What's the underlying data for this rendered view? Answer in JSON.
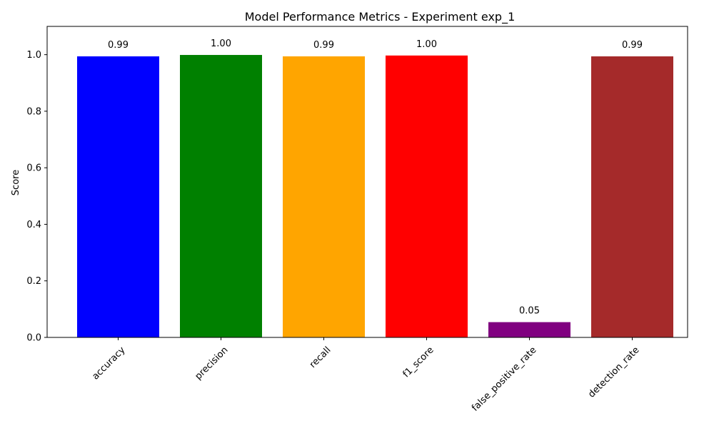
{
  "chart_data": {
    "type": "bar",
    "title": "Model Performance Metrics - Experiment exp_1",
    "xlabel": "",
    "ylabel": "Score",
    "ylim": [
      0,
      1.1
    ],
    "yticks": [
      "0.0",
      "0.2",
      "0.4",
      "0.6",
      "0.8",
      "1.0"
    ],
    "grid": false,
    "categories": [
      "accuracy",
      "precision",
      "recall",
      "f1_score",
      "false_positive_rate",
      "detection_rate"
    ],
    "values": [
      0.994,
      0.999,
      0.994,
      0.997,
      0.054,
      0.994
    ],
    "value_labels": [
      "0.99",
      "1.00",
      "0.99",
      "1.00",
      "0.05",
      "0.99"
    ],
    "colors": [
      "#0000ff",
      "#008000",
      "#ffa500",
      "#ff0000",
      "#800080",
      "#a52a2a"
    ]
  }
}
